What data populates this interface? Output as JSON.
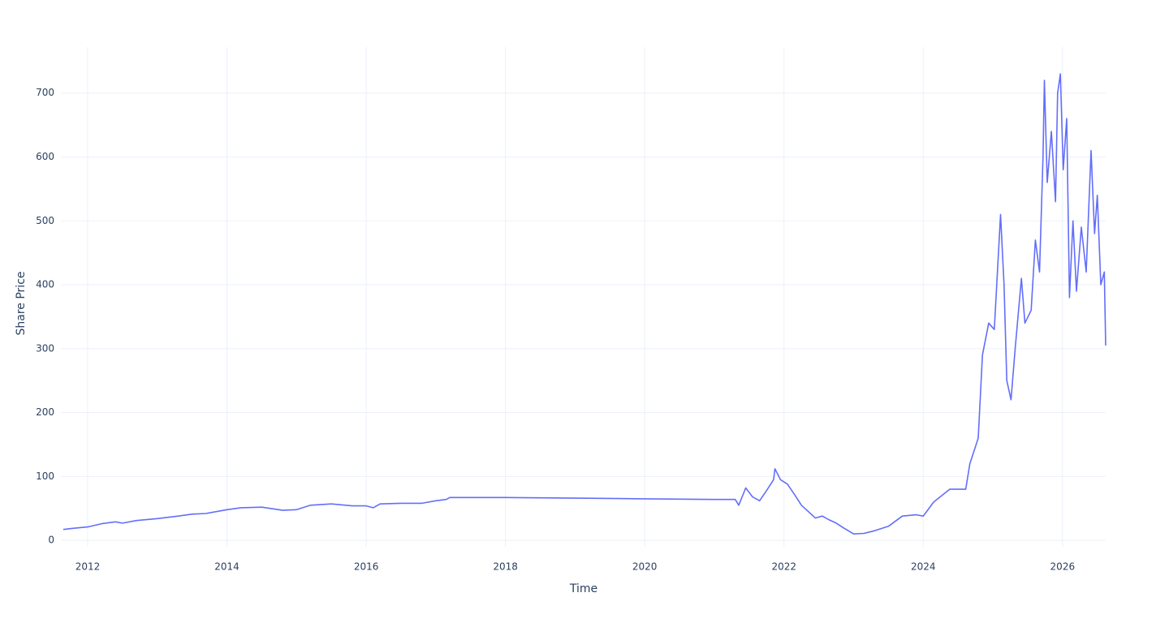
{
  "chart_data": {
    "type": "line",
    "x_label": "Time",
    "y_label": "Share Price",
    "color": "#636efa",
    "grid": true,
    "xlim": [
      2011.615,
      2026.62
    ],
    "ylim": [
      -10,
      772
    ],
    "xticks": [
      2012,
      2014,
      2016,
      2018,
      2020,
      2022,
      2024,
      2026
    ],
    "yticks": [
      0,
      100,
      200,
      300,
      400,
      500,
      600,
      700
    ],
    "x": [
      2011.65,
      2011.8,
      2012.0,
      2012.2,
      2012.4,
      2012.5,
      2012.7,
      2013.0,
      2013.3,
      2013.5,
      2013.7,
      2014.0,
      2014.2,
      2014.5,
      2014.8,
      2015.0,
      2015.2,
      2015.5,
      2015.8,
      2016.0,
      2016.1,
      2016.2,
      2016.5,
      2016.8,
      2017.0,
      2017.15,
      2017.2,
      2018.0,
      2019.0,
      2020.0,
      2021.0,
      2021.3,
      2021.35,
      2021.45,
      2021.55,
      2021.65,
      2021.75,
      2021.85,
      2021.87,
      2021.95,
      2022.05,
      2022.15,
      2022.25,
      2022.35,
      2022.45,
      2022.55,
      2022.65,
      2022.75,
      2022.85,
      2023.0,
      2023.15,
      2023.3,
      2023.5,
      2023.7,
      2023.9,
      2024.0,
      2024.15,
      2024.38,
      2024.61,
      2024.67,
      2024.79,
      2024.85,
      2024.94,
      2025.02,
      2025.11,
      2025.16,
      2025.2,
      2025.26,
      2025.32,
      2025.41,
      2025.46,
      2025.55,
      2025.61,
      2025.67,
      2025.72,
      2025.74,
      2025.78,
      2025.84,
      2025.9,
      2025.93,
      2025.97,
      2026.01,
      2026.06,
      2026.1,
      2026.15,
      2026.2,
      2026.27,
      2026.34,
      2026.41,
      2026.46,
      2026.5,
      2026.55,
      2026.6,
      2026.62
    ],
    "values": [
      17,
      19,
      21,
      26,
      29,
      27,
      31,
      34,
      38,
      41,
      42,
      48,
      51,
      52,
      47,
      48,
      55,
      57,
      54,
      54,
      51,
      57,
      58,
      58,
      62,
      64,
      67,
      67,
      66,
      65,
      64,
      64,
      55,
      82,
      68,
      62,
      78,
      95,
      112,
      95,
      88,
      72,
      55,
      45,
      35,
      38,
      32,
      27,
      20,
      10,
      11,
      15,
      22,
      38,
      40,
      38,
      60,
      80,
      80,
      120,
      160,
      290,
      340,
      330,
      510,
      400,
      250,
      220,
      300,
      410,
      340,
      360,
      470,
      420,
      600,
      720,
      560,
      640,
      530,
      700,
      730,
      580,
      660,
      380,
      500,
      390,
      490,
      420,
      610,
      480,
      540,
      400,
      420,
      305
    ]
  }
}
